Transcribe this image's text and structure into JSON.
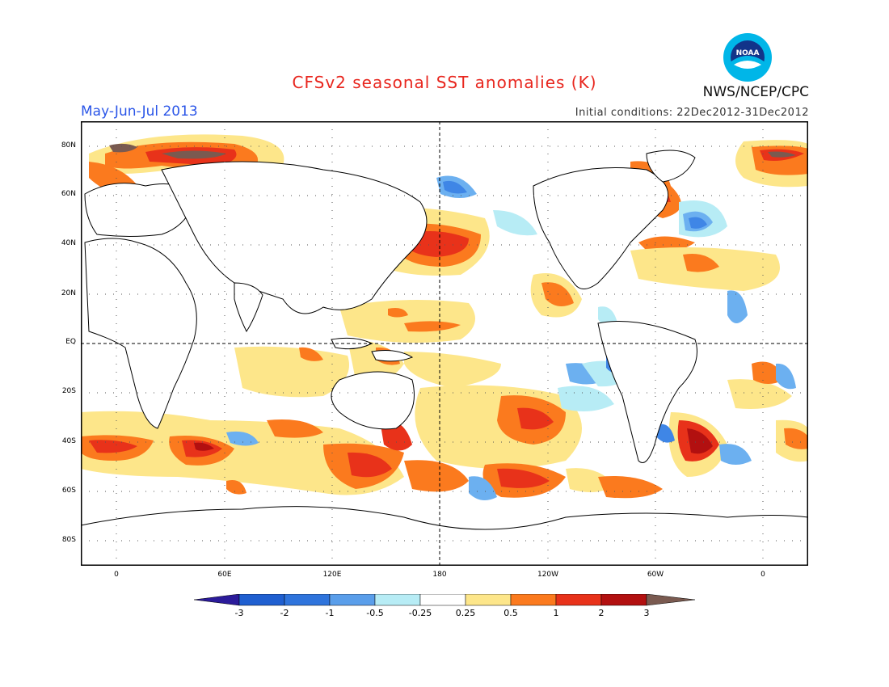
{
  "header": {
    "title": "CFSv2 seasonal SST anomalies (K)",
    "season": "May-Jun-Jul 2013",
    "initial_conditions": "Initial conditions: 22Dec2012-31Dec2012",
    "agency": "NWS/NCEP/CPC",
    "logo_text": "NOAA"
  },
  "map": {
    "lat_labels": [
      "80N",
      "60N",
      "40N",
      "20N",
      "EQ",
      "20S",
      "40S",
      "60S",
      "80S"
    ],
    "lon_labels": [
      "0",
      "60E",
      "120E",
      "180",
      "120W",
      "60W",
      "0"
    ],
    "colors": {
      "deep_cold": "#2b1b9a",
      "cold3": "#1f5fd0",
      "cold2": "#3f86e6",
      "cold1": "#6cb0f0",
      "cold0": "#b7ecf5",
      "neutral": "#ffffff",
      "warm0": "#fde68a",
      "warm1": "#fb7a1e",
      "warm2": "#e8321a",
      "warm3": "#b21010",
      "extreme": "#7a5a50"
    }
  },
  "colorbar": {
    "labels": [
      "-3",
      "-2",
      "-1",
      "-0.5",
      "-0.25",
      "0.25",
      "0.5",
      "1",
      "2",
      "3"
    ]
  }
}
